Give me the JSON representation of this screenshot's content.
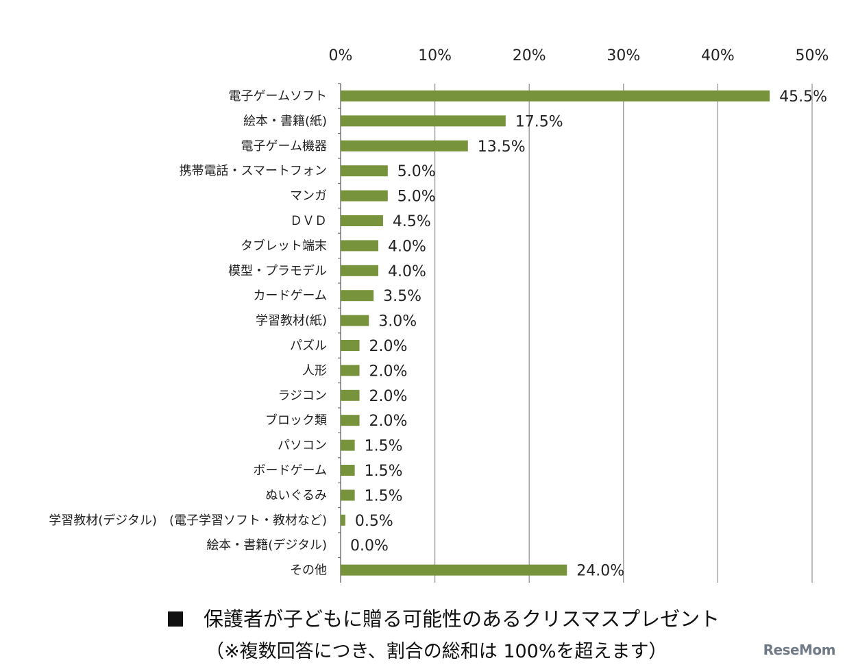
{
  "chart_data": {
    "type": "bar",
    "orientation": "horizontal",
    "categories": [
      "電子ゲームソフト",
      "絵本・書籍(紙)",
      "電子ゲーム機器",
      "携帯電話・スマートフォン",
      "マンガ",
      "ＤＶＤ",
      "タブレット端末",
      "模型・プラモデル",
      "カードゲーム",
      "学習教材(紙)",
      "パズル",
      "人形",
      "ラジコン",
      "ブロック類",
      "パソコン",
      "ボードゲーム",
      "ぬいぐるみ",
      "学習教材(デジタル)　(電子学習ソフト・教材など)",
      "絵本・書籍(デジタル)",
      "その他"
    ],
    "values": [
      45.5,
      17.5,
      13.5,
      5.0,
      5.0,
      4.5,
      4.0,
      4.0,
      3.5,
      3.0,
      2.0,
      2.0,
      2.0,
      2.0,
      1.5,
      1.5,
      1.5,
      0.5,
      0.0,
      24.0
    ],
    "value_labels": [
      "45.5%",
      "17.5%",
      "13.5%",
      "5.0%",
      "5.0%",
      "4.5%",
      "4.0%",
      "4.0%",
      "3.5%",
      "3.0%",
      "2.0%",
      "2.0%",
      "2.0%",
      "2.0%",
      "1.5%",
      "1.5%",
      "1.5%",
      "0.5%",
      "0.0%",
      "24.0%"
    ],
    "xlim": [
      0,
      50
    ],
    "xticks": [
      "0%",
      "10%",
      "20%",
      "30%",
      "40%",
      "50%"
    ],
    "x_axis_position": "top",
    "grid": true,
    "bar_color": "#77933c",
    "grid_color": "#8c8c8c"
  },
  "caption": {
    "marker": "■",
    "title": "保護者が子どもに贈る可能性のあるクリスマスプレゼント",
    "note": "（※複数回答につき、割合の総和は 100%を超えます）"
  },
  "logo": {
    "text": "ReseMom"
  }
}
